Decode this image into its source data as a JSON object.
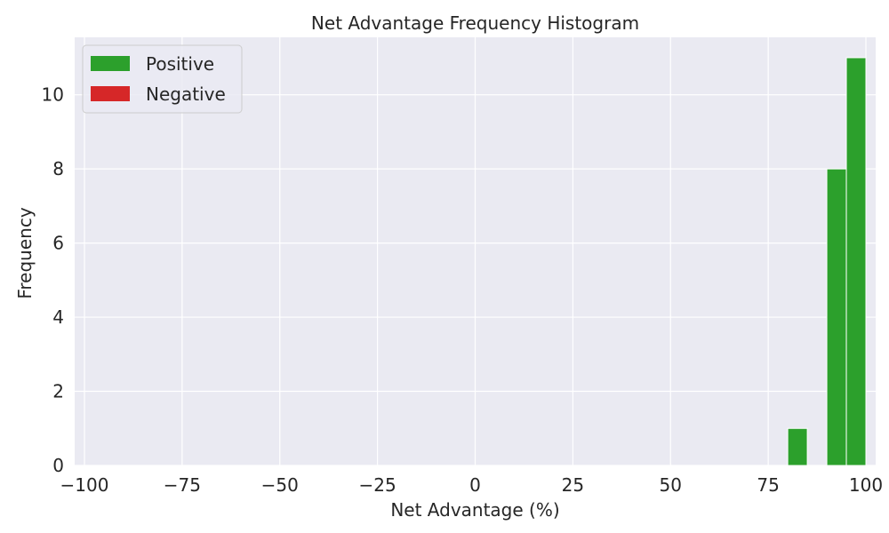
{
  "chart_data": {
    "type": "bar",
    "title": "Net Advantage Frequency Histogram",
    "xlabel": "Net Advantage (%)",
    "ylabel": "Frequency",
    "xlim": [
      -102.5,
      102.5
    ],
    "ylim": [
      0,
      11.55
    ],
    "xticks": [
      -100,
      -75,
      -50,
      -25,
      0,
      25,
      50,
      75,
      100
    ],
    "xtick_labels": [
      "−100",
      "−75",
      "−50",
      "−25",
      "0",
      "25",
      "50",
      "75",
      "100"
    ],
    "yticks": [
      0,
      2,
      4,
      6,
      8,
      10
    ],
    "ytick_labels": [
      "0",
      "2",
      "4",
      "6",
      "8",
      "10"
    ],
    "grid": true,
    "legend_position": "top-left",
    "series": [
      {
        "name": "Positive",
        "color": "#2ca02c",
        "bins": [
          {
            "x_start": 80,
            "x_end": 85,
            "value": 1
          },
          {
            "x_start": 90,
            "x_end": 95,
            "value": 8
          },
          {
            "x_start": 95,
            "x_end": 100,
            "value": 11
          }
        ]
      },
      {
        "name": "Negative",
        "color": "#d62728",
        "bins": []
      }
    ]
  }
}
